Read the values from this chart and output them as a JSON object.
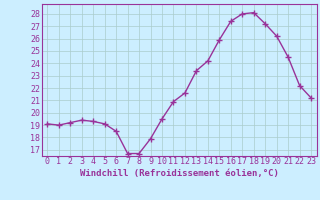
{
  "x": [
    0,
    1,
    2,
    3,
    4,
    5,
    6,
    7,
    8,
    9,
    10,
    11,
    12,
    13,
    14,
    15,
    16,
    17,
    18,
    19,
    20,
    21,
    22,
    23
  ],
  "y": [
    19.1,
    19.0,
    19.2,
    19.4,
    19.3,
    19.1,
    18.5,
    16.7,
    16.7,
    17.9,
    19.5,
    20.9,
    21.6,
    23.4,
    24.2,
    25.9,
    27.4,
    28.0,
    28.1,
    27.2,
    26.2,
    24.5,
    22.2,
    21.2
  ],
  "line_color": "#993399",
  "marker": "+",
  "marker_size": 4,
  "bg_color": "#cceeff",
  "grid_color": "#aacccc",
  "ylim": [
    16.5,
    28.8
  ],
  "xlim": [
    -0.5,
    23.5
  ],
  "yticks": [
    17,
    18,
    19,
    20,
    21,
    22,
    23,
    24,
    25,
    26,
    27,
    28
  ],
  "xticks": [
    0,
    1,
    2,
    3,
    4,
    5,
    6,
    7,
    8,
    9,
    10,
    11,
    12,
    13,
    14,
    15,
    16,
    17,
    18,
    19,
    20,
    21,
    22,
    23
  ],
  "xlabel": "Windchill (Refroidissement éolien,°C)",
  "xlabel_fontsize": 6.5,
  "tick_fontsize": 6,
  "line_width": 1.0,
  "axis_color": "#993399"
}
